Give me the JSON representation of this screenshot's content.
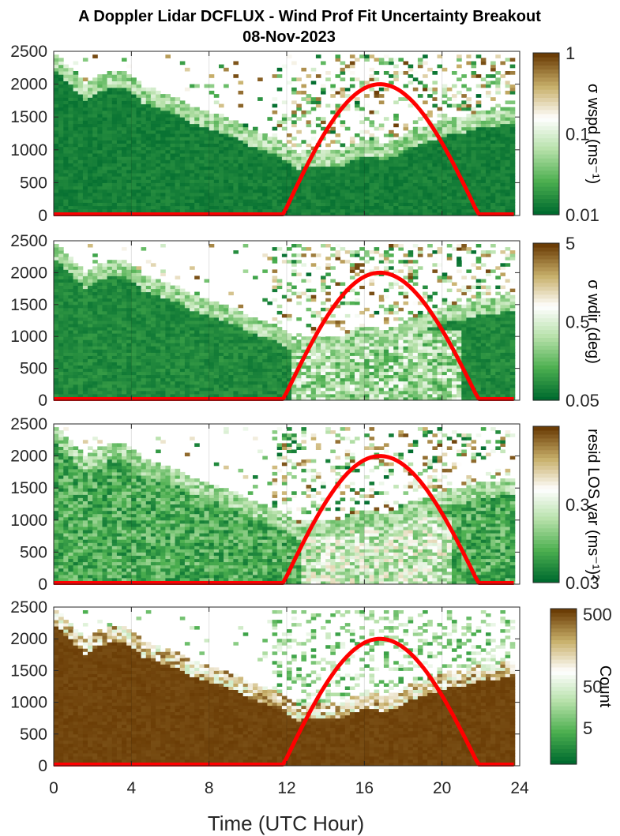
{
  "title": {
    "line1": "A Doppler Lidar DCFLUX - Wind Prof Fit Uncertainty Breakout",
    "line2": "08-Nov-2023"
  },
  "xlabel": "Time (UTC Hour)",
  "colors": {
    "dark_green": "#006b2f",
    "mid_green": "#4caf4f",
    "light_green": "#b5e0a8",
    "white": "#ffffff",
    "tan": "#c8b06a",
    "brown": "#6b3d06",
    "sun_curve": "#ff0000"
  },
  "chart_data": [
    {
      "type": "heatmap",
      "xlim": [
        0,
        24
      ],
      "ylim": [
        0,
        2500
      ],
      "xticks": [
        0,
        4,
        8,
        12,
        16,
        20,
        24
      ],
      "yticks": [
        0,
        500,
        1000,
        1500,
        2000,
        2500
      ],
      "colorbar": {
        "label": "σ wspd (ms⁻¹)",
        "scale": "log",
        "range": [
          0.01,
          1
        ],
        "ticks": [
          "1",
          "0.1",
          "0.01"
        ]
      },
      "dense_top_m": [
        [
          0,
          2300
        ],
        [
          1.5,
          1850
        ],
        [
          2.5,
          2000
        ],
        [
          3.5,
          2050
        ],
        [
          4.5,
          1800
        ],
        [
          6,
          1650
        ],
        [
          7,
          1500
        ],
        [
          8,
          1400
        ],
        [
          9,
          1300
        ],
        [
          10,
          1150
        ],
        [
          11.5,
          1000
        ],
        [
          12.5,
          800
        ],
        [
          13.5,
          850
        ],
        [
          14.5,
          820
        ],
        [
          16,
          1000
        ],
        [
          17,
          920
        ],
        [
          18,
          1080
        ],
        [
          19,
          1200
        ],
        [
          20,
          1300
        ],
        [
          21,
          1350
        ],
        [
          22,
          1420
        ],
        [
          23.5,
          1480
        ]
      ],
      "scatter_top_m": 2450,
      "sun_elevation_curve": {
        "start_hour": 11.8,
        "peak_hour": 16.8,
        "end_hour": 21.9,
        "peak_value": 2000
      }
    },
    {
      "type": "heatmap",
      "xlim": [
        0,
        24
      ],
      "ylim": [
        0,
        2500
      ],
      "xticks": [
        0,
        4,
        8,
        12,
        16,
        20,
        24
      ],
      "yticks": [
        0,
        500,
        1000,
        1500,
        2000,
        2500
      ],
      "colorbar": {
        "label": "σ wdir (deg)",
        "scale": "log",
        "range": [
          0.05,
          5
        ],
        "ticks": [
          "5",
          "0.5",
          "0.05"
        ]
      },
      "dense_top_m": [
        [
          0,
          2300
        ],
        [
          1.5,
          1850
        ],
        [
          2.5,
          2000
        ],
        [
          3.5,
          2050
        ],
        [
          4.5,
          1800
        ],
        [
          6,
          1650
        ],
        [
          7,
          1500
        ],
        [
          8,
          1400
        ],
        [
          9,
          1300
        ],
        [
          10,
          1150
        ],
        [
          11.5,
          1000
        ],
        [
          12.5,
          800
        ],
        [
          13.5,
          850
        ],
        [
          14.5,
          820
        ],
        [
          16,
          1000
        ],
        [
          17,
          920
        ],
        [
          18,
          1080
        ],
        [
          19,
          1200
        ],
        [
          20,
          1300
        ],
        [
          21,
          1350
        ],
        [
          22,
          1420
        ],
        [
          23.5,
          1480
        ]
      ],
      "scatter_top_m": 2450,
      "sun_elevation_curve": {
        "start_hour": 11.8,
        "peak_hour": 16.8,
        "end_hour": 21.9,
        "peak_value": 2000
      }
    },
    {
      "type": "heatmap",
      "xlim": [
        0,
        24
      ],
      "ylim": [
        0,
        2500
      ],
      "xticks": [
        0,
        4,
        8,
        12,
        16,
        20,
        24
      ],
      "yticks": [
        0,
        500,
        1000,
        1500,
        2000,
        2500
      ],
      "colorbar": {
        "label": "resid LOS var (ms⁻¹)²",
        "scale": "log",
        "range": [
          0.03,
          3
        ],
        "ticks": [
          "0.3",
          "0.03"
        ]
      },
      "dense_top_m": [
        [
          0,
          2300
        ],
        [
          1.5,
          1850
        ],
        [
          2.5,
          2000
        ],
        [
          3.5,
          2050
        ],
        [
          4.5,
          1800
        ],
        [
          6,
          1650
        ],
        [
          7,
          1500
        ],
        [
          8,
          1400
        ],
        [
          9,
          1300
        ],
        [
          10,
          1150
        ],
        [
          11.5,
          1000
        ],
        [
          12.5,
          800
        ],
        [
          13.5,
          850
        ],
        [
          14.5,
          820
        ],
        [
          16,
          1000
        ],
        [
          17,
          920
        ],
        [
          18,
          1080
        ],
        [
          19,
          1200
        ],
        [
          20,
          1300
        ],
        [
          21,
          1350
        ],
        [
          22,
          1420
        ],
        [
          23.5,
          1480
        ]
      ],
      "scatter_top_m": 2450,
      "sun_elevation_curve": {
        "start_hour": 11.8,
        "peak_hour": 16.8,
        "end_hour": 21.9,
        "peak_value": 2000
      }
    },
    {
      "type": "heatmap",
      "xlim": [
        0,
        24
      ],
      "ylim": [
        0,
        2500
      ],
      "xticks": [
        0,
        4,
        8,
        12,
        16,
        20,
        24
      ],
      "yticks": [
        0,
        500,
        1000,
        1500,
        2000,
        2500
      ],
      "colorbar": {
        "label": "Count",
        "scale": "log",
        "range": [
          1,
          500
        ],
        "ticks": [
          "500",
          "50",
          "5"
        ]
      },
      "dense_top_m": [
        [
          0,
          2300
        ],
        [
          1.5,
          1850
        ],
        [
          2.5,
          2000
        ],
        [
          3.5,
          2050
        ],
        [
          4.5,
          1800
        ],
        [
          6,
          1650
        ],
        [
          7,
          1500
        ],
        [
          8,
          1400
        ],
        [
          9,
          1300
        ],
        [
          10,
          1150
        ],
        [
          11.5,
          1000
        ],
        [
          12.5,
          800
        ],
        [
          13.5,
          850
        ],
        [
          14.5,
          820
        ],
        [
          16,
          1000
        ],
        [
          17,
          920
        ],
        [
          18,
          1080
        ],
        [
          19,
          1200
        ],
        [
          20,
          1300
        ],
        [
          21,
          1350
        ],
        [
          22,
          1420
        ],
        [
          23.5,
          1480
        ]
      ],
      "scatter_top_m": 2450,
      "sun_elevation_curve": {
        "start_hour": 11.8,
        "peak_hour": 16.8,
        "end_hour": 21.9,
        "peak_value": 2000
      }
    }
  ]
}
